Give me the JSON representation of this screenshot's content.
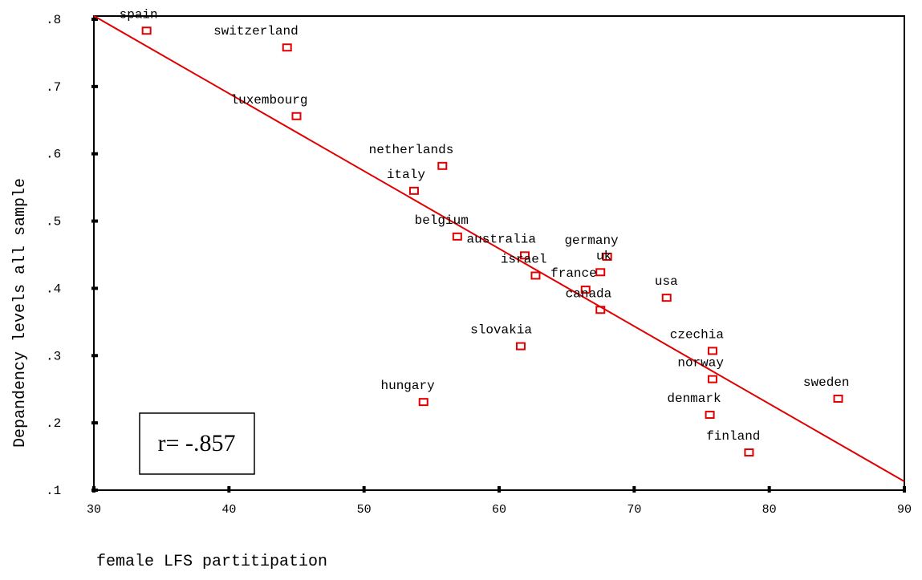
{
  "chart_data": {
    "type": "scatter",
    "x_label": "female LFS partitipation",
    "y_label": "Depandency levels all sample",
    "annotation": "r= -.857",
    "xlim": [
      30,
      90
    ],
    "xticks": [
      30,
      40,
      50,
      60,
      70,
      80,
      90
    ],
    "ylim": [
      0.1,
      0.8
    ],
    "yticks": [
      {
        "value": 0.1,
        "label": ".1"
      },
      {
        "value": 0.2,
        "label": ".2"
      },
      {
        "value": 0.3,
        "label": ".3"
      },
      {
        "value": 0.4,
        "label": ".4"
      },
      {
        "value": 0.5,
        "label": ".5"
      },
      {
        "value": 0.6,
        "label": ".6"
      },
      {
        "value": 0.7,
        "label": ".7"
      },
      {
        "value": 0.8,
        "label": ".8"
      }
    ],
    "color": "#e00000",
    "labels": [
      "spain",
      "switzerland",
      "luxembourg",
      "netherlands",
      "italy",
      "belgium",
      "australia",
      "germany",
      "uk",
      "israel",
      "france",
      "canada",
      "usa",
      "slovakia",
      "czechia",
      "norway",
      "hungary",
      "sweden",
      "denmark",
      "finland"
    ],
    "x": [
      33.9,
      44.3,
      45.0,
      55.8,
      53.7,
      56.9,
      61.9,
      68.0,
      67.5,
      62.7,
      66.4,
      67.5,
      72.4,
      61.6,
      75.8,
      75.8,
      54.4,
      85.1,
      75.6,
      78.5
    ],
    "y": [
      0.783,
      0.758,
      0.656,
      0.582,
      0.545,
      0.477,
      0.449,
      0.447,
      0.424,
      0.419,
      0.398,
      0.368,
      0.386,
      0.314,
      0.307,
      0.265,
      0.231,
      0.236,
      0.212,
      0.156
    ],
    "fit_line": {
      "x": [
        30,
        90
      ],
      "y": [
        0.805,
        0.113
      ]
    }
  }
}
